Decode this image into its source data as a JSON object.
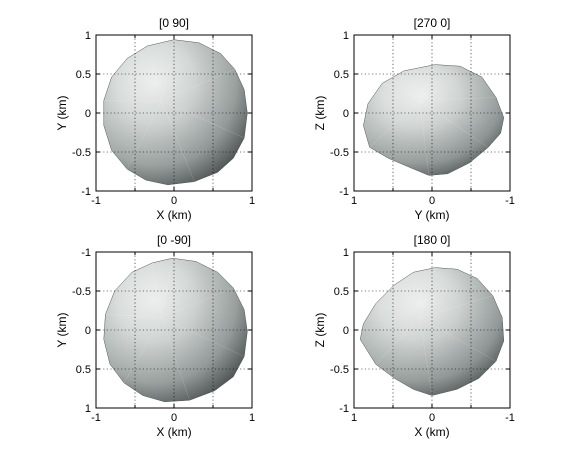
{
  "figure": {
    "panels": [
      {
        "title": "[0 90]",
        "xlabel": "X (km)",
        "ylabel": "Y (km)",
        "xticks": [
          "-1",
          "0",
          "1"
        ],
        "yticks": [
          "1",
          "0.5",
          "0",
          "-0.5",
          "-1"
        ],
        "xlim": [
          -1,
          1
        ],
        "ylim": [
          -1,
          1
        ],
        "grid": true,
        "shading": "light-from-upper-left"
      },
      {
        "title": "[270 0]",
        "xlabel": "Y (km)",
        "ylabel": "Z (km)",
        "xticks": [
          "1",
          "0",
          "-1"
        ],
        "yticks": [
          "1",
          "0.5",
          "0",
          "-0.5",
          "-1"
        ],
        "xlim": [
          1,
          -1
        ],
        "ylim": [
          -1,
          1
        ],
        "grid": true,
        "shading": "light-from-upper-left"
      },
      {
        "title": "[0 -90]",
        "xlabel": "X (km)",
        "ylabel": "Y (km)",
        "xticks": [
          "-1",
          "0",
          "1"
        ],
        "yticks": [
          "-1",
          "-0.5",
          "0",
          "0.5",
          "1"
        ],
        "xlim": [
          -1,
          1
        ],
        "ylim": [
          1,
          -1
        ],
        "grid": true,
        "shading": "light-from-upper-left"
      },
      {
        "title": "[180 0]",
        "xlabel": "X (km)",
        "ylabel": "Z (km)",
        "xticks": [
          "1",
          "0",
          "-1"
        ],
        "yticks": [
          "1",
          "0.5",
          "0",
          "-0.5",
          "-1"
        ],
        "xlim": [
          1,
          -1
        ],
        "ylim": [
          -1,
          1
        ],
        "grid": true,
        "shading": "light-from-upper-left"
      }
    ],
    "colors": {
      "surface_light": "#e8eceb",
      "surface_mid": "#b9c0bd",
      "surface_dark": "#3f4644",
      "axes": "#000000"
    }
  }
}
